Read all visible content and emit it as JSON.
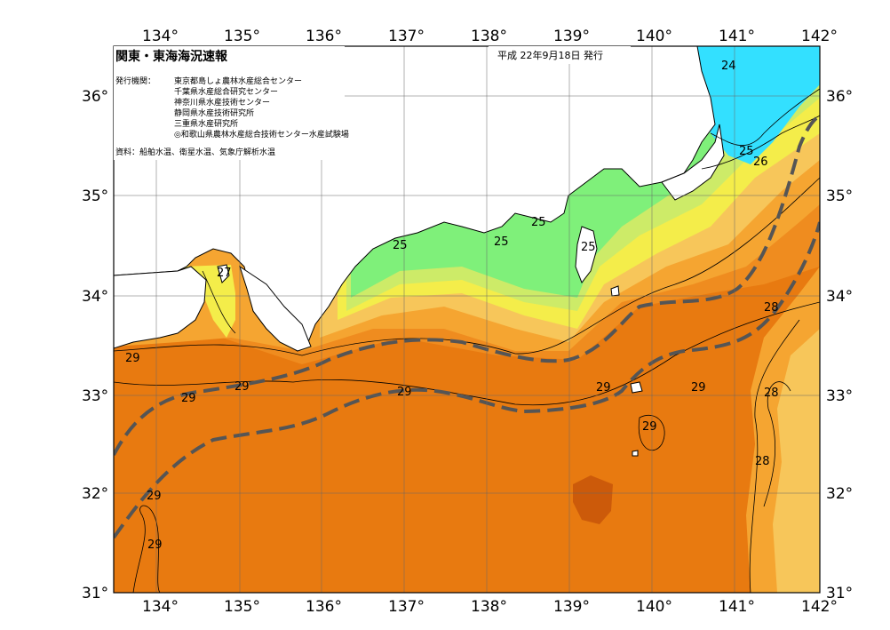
{
  "header": {
    "title": "関東・東海海況速報",
    "issue_date": "平成 22年9月18日 発行",
    "issuer_label": "発行機関：",
    "issuers": [
      "東京都島しょ農林水産総合センター",
      "千葉県水産総合研究センター",
      "神奈川県水産技術センター",
      "静岡県水産技術研究所",
      "三重県水産研究所",
      "◎和歌山県農林水産総合技術センター水産試験場"
    ],
    "source": "資料：船舶水温、衛星水温、気象庁解析水温"
  },
  "axes": {
    "lon_ticks": [
      "134°",
      "135°",
      "136°",
      "137°",
      "138°",
      "139°",
      "140°",
      "141°",
      "142°"
    ],
    "lat_ticks": [
      "31°",
      "32°",
      "33°",
      "34°",
      "35°",
      "36°"
    ]
  },
  "isotherm_labels": [
    "24",
    "25",
    "26",
    "25",
    "25",
    "25",
    "25",
    "27",
    "28",
    "28",
    "28",
    "29",
    "29",
    "29",
    "29",
    "29",
    "29",
    "29",
    "29",
    "29"
  ],
  "colors": {
    "cold_cyan": "#33e0ff",
    "light_green": "#7ff07a",
    "yellow_green": "#cdeb68",
    "yellow": "#f4ed4a",
    "light_orange": "#f7c65a",
    "orange": "#f5a531",
    "dark_orange": "#ef8c1f",
    "deep_orange": "#e87a10",
    "warm_core": "#cc5a0a",
    "kuroshio_axis": "#555555"
  }
}
